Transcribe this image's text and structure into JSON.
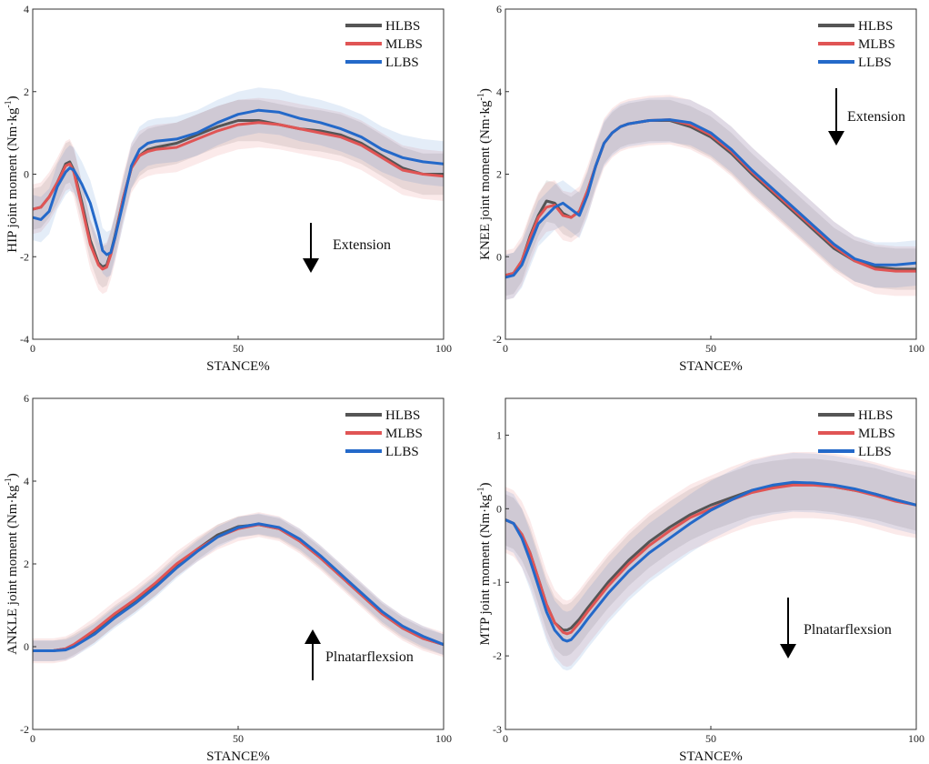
{
  "chart_data": [
    {
      "type": "line",
      "id": "hip",
      "ylabel": "HIP joint moment (Nm·kg-1)",
      "ylabel_main": "HIP joint moment (Nm·kg",
      "ylabel_sup": "-1",
      "ylabel_close": ")",
      "xlabel": "STANCE%",
      "xlim": [
        0,
        100
      ],
      "ylim": [
        -4,
        4
      ],
      "xticks": [
        0,
        50,
        100
      ],
      "yticks": [
        -4,
        -2,
        0,
        2,
        4
      ],
      "legend": [
        "HLBS",
        "MLBS",
        "LLBS"
      ],
      "annotation": {
        "text": "Extension",
        "arrow": "down"
      },
      "x": [
        0,
        2,
        4,
        6,
        8,
        9,
        10,
        12,
        14,
        16,
        17,
        18,
        19,
        20,
        22,
        24,
        26,
        28,
        30,
        35,
        40,
        45,
        50,
        55,
        60,
        65,
        70,
        75,
        80,
        85,
        90,
        95,
        100
      ],
      "series": [
        {
          "name": "HLBS",
          "color": "#555555",
          "band": 0.5,
          "values": [
            -0.85,
            -0.8,
            -0.55,
            -0.2,
            0.25,
            0.3,
            0.1,
            -0.7,
            -1.6,
            -2.15,
            -2.25,
            -2.2,
            -1.9,
            -1.5,
            -0.6,
            0.15,
            0.45,
            0.6,
            0.65,
            0.75,
            0.95,
            1.15,
            1.3,
            1.3,
            1.2,
            1.1,
            1.05,
            0.95,
            0.75,
            0.45,
            0.15,
            0.0,
            0.0
          ]
        },
        {
          "name": "MLBS",
          "color": "#e05555",
          "band": 0.6,
          "values": [
            -0.85,
            -0.8,
            -0.55,
            -0.2,
            0.2,
            0.25,
            0.05,
            -0.8,
            -1.7,
            -2.2,
            -2.3,
            -2.25,
            -1.95,
            -1.55,
            -0.6,
            0.15,
            0.45,
            0.55,
            0.6,
            0.65,
            0.85,
            1.05,
            1.2,
            1.25,
            1.2,
            1.1,
            1.0,
            0.9,
            0.7,
            0.4,
            0.1,
            0.0,
            -0.05
          ]
        },
        {
          "name": "LLBS",
          "color": "#2469c9",
          "band": 0.55,
          "values": [
            -1.05,
            -1.1,
            -0.9,
            -0.3,
            0.05,
            0.15,
            0.1,
            -0.25,
            -0.7,
            -1.4,
            -1.85,
            -1.95,
            -1.9,
            -1.55,
            -0.7,
            0.2,
            0.6,
            0.75,
            0.8,
            0.85,
            1.0,
            1.25,
            1.45,
            1.55,
            1.5,
            1.35,
            1.25,
            1.1,
            0.9,
            0.6,
            0.4,
            0.3,
            0.25
          ]
        }
      ]
    },
    {
      "type": "line",
      "id": "knee",
      "ylabel": "KNEE joint moment (Nm·kg-1)",
      "ylabel_main": "KNEE joint moment (Nm·kg",
      "ylabel_sup": "-1",
      "ylabel_close": ")",
      "xlabel": "STANCE%",
      "xlim": [
        0,
        100
      ],
      "ylim": [
        -2,
        6
      ],
      "xticks": [
        0,
        50,
        100
      ],
      "yticks": [
        -2,
        0,
        2,
        4,
        6
      ],
      "legend": [
        "HLBS",
        "MLBS",
        "LLBS"
      ],
      "annotation": {
        "text": "Extension",
        "arrow": "down"
      },
      "x": [
        0,
        2,
        4,
        6,
        8,
        10,
        12,
        14,
        16,
        18,
        20,
        22,
        24,
        26,
        28,
        30,
        35,
        40,
        45,
        50,
        55,
        60,
        65,
        70,
        75,
        80,
        85,
        90,
        95,
        100
      ],
      "series": [
        {
          "name": "HLBS",
          "color": "#555555",
          "band": 0.5,
          "values": [
            -0.45,
            -0.4,
            -0.1,
            0.5,
            1.0,
            1.35,
            1.3,
            1.05,
            0.95,
            1.1,
            1.6,
            2.2,
            2.75,
            3.0,
            3.15,
            3.22,
            3.3,
            3.3,
            3.15,
            2.9,
            2.5,
            2.0,
            1.55,
            1.1,
            0.65,
            0.2,
            -0.1,
            -0.25,
            -0.3,
            -0.3
          ]
        },
        {
          "name": "MLBS",
          "color": "#e05555",
          "band": 0.6,
          "values": [
            -0.45,
            -0.4,
            -0.1,
            0.45,
            0.95,
            1.2,
            1.25,
            1.0,
            0.95,
            1.1,
            1.6,
            2.2,
            2.75,
            3.0,
            3.15,
            3.22,
            3.3,
            3.32,
            3.2,
            2.95,
            2.55,
            2.05,
            1.6,
            1.15,
            0.7,
            0.25,
            -0.1,
            -0.3,
            -0.35,
            -0.35
          ]
        },
        {
          "name": "LLBS",
          "color": "#2469c9",
          "band": 0.55,
          "values": [
            -0.5,
            -0.45,
            -0.2,
            0.3,
            0.8,
            1.0,
            1.2,
            1.3,
            1.15,
            1.0,
            1.5,
            2.2,
            2.75,
            3.0,
            3.15,
            3.22,
            3.3,
            3.32,
            3.25,
            3.0,
            2.6,
            2.1,
            1.65,
            1.2,
            0.75,
            0.3,
            -0.05,
            -0.2,
            -0.2,
            -0.15
          ]
        }
      ]
    },
    {
      "type": "line",
      "id": "ankle",
      "ylabel": "ANKLE joint moment (Nm·kg-1)",
      "ylabel_main": "ANKLE joint moment (Nm·kg",
      "ylabel_sup": "-1",
      "ylabel_close": ")",
      "xlabel": "STANCE%",
      "xlim": [
        0,
        100
      ],
      "ylim": [
        -2,
        6
      ],
      "xticks": [
        0,
        50,
        100
      ],
      "yticks": [
        -2,
        0,
        2,
        4,
        6
      ],
      "legend": [
        "HLBS",
        "MLBS",
        "LLBS"
      ],
      "annotation": {
        "text": "Plnatarflexsion",
        "arrow": "up"
      },
      "x": [
        0,
        5,
        8,
        10,
        15,
        20,
        25,
        30,
        35,
        40,
        45,
        50,
        55,
        60,
        65,
        70,
        75,
        80,
        85,
        90,
        95,
        100
      ],
      "series": [
        {
          "name": "HLBS",
          "color": "#555555",
          "band": 0.25,
          "values": [
            -0.1,
            -0.1,
            -0.05,
            0.05,
            0.35,
            0.75,
            1.1,
            1.5,
            1.95,
            2.35,
            2.7,
            2.9,
            2.95,
            2.85,
            2.55,
            2.15,
            1.7,
            1.25,
            0.8,
            0.45,
            0.2,
            0.05
          ]
        },
        {
          "name": "MLBS",
          "color": "#e05555",
          "band": 0.3,
          "values": [
            -0.1,
            -0.1,
            -0.05,
            0.05,
            0.4,
            0.8,
            1.15,
            1.55,
            2.0,
            2.35,
            2.65,
            2.85,
            2.95,
            2.85,
            2.55,
            2.15,
            1.7,
            1.25,
            0.8,
            0.45,
            0.2,
            0.05
          ]
        },
        {
          "name": "LLBS",
          "color": "#2469c9",
          "band": 0.25,
          "values": [
            -0.1,
            -0.1,
            -0.08,
            0.0,
            0.3,
            0.7,
            1.05,
            1.45,
            1.9,
            2.3,
            2.65,
            2.88,
            2.97,
            2.88,
            2.6,
            2.2,
            1.75,
            1.3,
            0.85,
            0.5,
            0.25,
            0.05
          ]
        }
      ]
    },
    {
      "type": "line",
      "id": "mtp",
      "ylabel": "MTP joint moment (Nm·kg-1)",
      "ylabel_main": "MTP joint moment (Nm·kg",
      "ylabel_sup": "-1",
      "ylabel_close": ")",
      "xlabel": "STANCE%",
      "xlim": [
        0,
        100
      ],
      "ylim": [
        -3,
        1.5
      ],
      "xticks": [
        0,
        50,
        100
      ],
      "yticks": [
        -3,
        -2,
        -1,
        0,
        1
      ],
      "legend": [
        "HLBS",
        "MLBS",
        "LLBS"
      ],
      "annotation": {
        "text": "Plnatarflexsion",
        "arrow": "down"
      },
      "x": [
        0,
        2,
        4,
        6,
        8,
        10,
        12,
        14,
        15,
        16,
        18,
        20,
        25,
        30,
        35,
        40,
        45,
        50,
        55,
        60,
        65,
        70,
        75,
        80,
        85,
        90,
        95,
        100
      ],
      "series": [
        {
          "name": "HLBS",
          "color": "#555555",
          "band": 0.35,
          "values": [
            -0.15,
            -0.2,
            -0.35,
            -0.6,
            -0.95,
            -1.3,
            -1.55,
            -1.65,
            -1.65,
            -1.62,
            -1.5,
            -1.35,
            -1.0,
            -0.7,
            -0.45,
            -0.25,
            -0.08,
            0.05,
            0.15,
            0.25,
            0.3,
            0.33,
            0.33,
            0.3,
            0.25,
            0.2,
            0.12,
            0.05
          ]
        },
        {
          "name": "MLBS",
          "color": "#e05555",
          "band": 0.45,
          "values": [
            -0.15,
            -0.2,
            -0.35,
            -0.6,
            -0.95,
            -1.3,
            -1.55,
            -1.68,
            -1.7,
            -1.68,
            -1.55,
            -1.4,
            -1.05,
            -0.75,
            -0.5,
            -0.3,
            -0.12,
            0.0,
            0.12,
            0.22,
            0.28,
            0.32,
            0.32,
            0.3,
            0.25,
            0.18,
            0.1,
            0.05
          ]
        },
        {
          "name": "LLBS",
          "color": "#2469c9",
          "band": 0.4,
          "values": [
            -0.15,
            -0.2,
            -0.4,
            -0.7,
            -1.05,
            -1.4,
            -1.65,
            -1.78,
            -1.8,
            -1.78,
            -1.65,
            -1.5,
            -1.15,
            -0.85,
            -0.6,
            -0.4,
            -0.2,
            -0.02,
            0.12,
            0.25,
            0.32,
            0.36,
            0.35,
            0.32,
            0.27,
            0.2,
            0.12,
            0.05
          ]
        }
      ]
    }
  ]
}
